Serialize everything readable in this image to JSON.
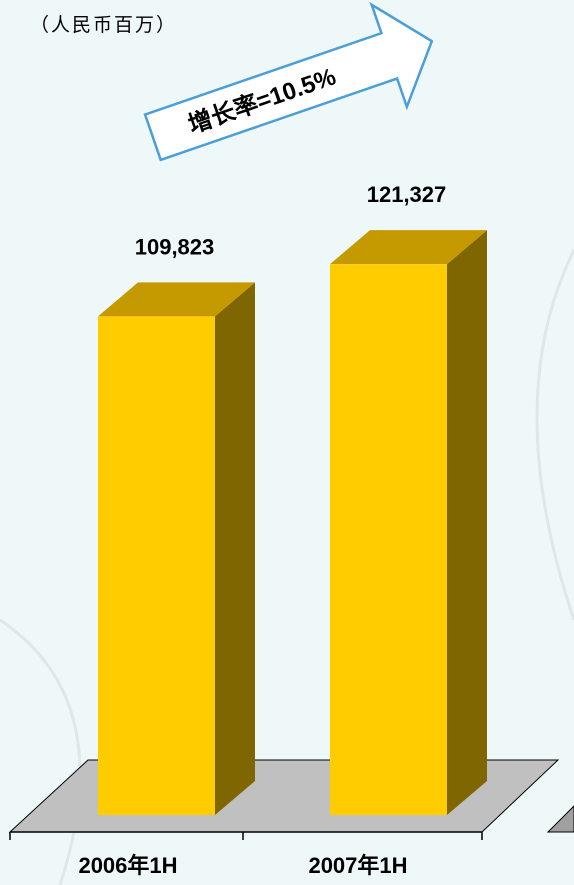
{
  "chart_data": {
    "type": "bar",
    "style": "3d",
    "unit_label": "（人民币百万）",
    "categories": [
      "2006年1H",
      "2007年1H"
    ],
    "series": [
      {
        "values": [
          109823,
          121327
        ],
        "value_labels": [
          "109,823",
          "121,327"
        ]
      }
    ],
    "growth_annotation": "增长率=10.5%",
    "ylim": [
      0,
      130000
    ],
    "colors": {
      "bar_front": "#FFCC00",
      "bar_top": "#C49A00",
      "bar_side": "#806600",
      "floor": "#C0C0C0",
      "background": "#EEF8F9",
      "arrow_fill": "#FFFFFF",
      "arrow_stroke": "#4A9FD8"
    }
  }
}
